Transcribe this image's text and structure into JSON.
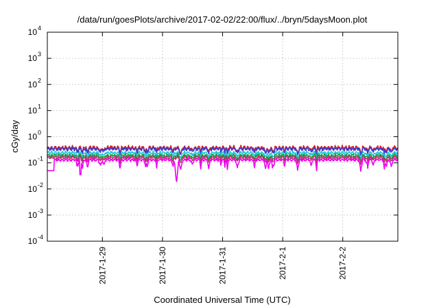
{
  "chart_data": {
    "type": "line",
    "title": "/data/run/goesPlots/archive/2017-02-02/22:00/flux/../bryn/5daysMoon.plot",
    "xlabel": "Coordinated Universal Time (UTC)",
    "ylabel": "cGy/day",
    "y_scale": "log",
    "ylim": [
      0.0001,
      10000
    ],
    "y_ticks": [
      {
        "base": "10",
        "exp": "4",
        "value": 10000
      },
      {
        "base": "10",
        "exp": "3",
        "value": 1000
      },
      {
        "base": "10",
        "exp": "2",
        "value": 100
      },
      {
        "base": "10",
        "exp": "1",
        "value": 10
      },
      {
        "base": "10",
        "exp": "0",
        "value": 1
      },
      {
        "base": "10",
        "exp": "-1",
        "value": 0.1
      },
      {
        "base": "10",
        "exp": "-2",
        "value": 0.01
      },
      {
        "base": "10",
        "exp": "-3",
        "value": 0.001
      },
      {
        "base": "10",
        "exp": "-4",
        "value": 0.0001
      }
    ],
    "xlim": [
      "2017-01-28 02:00",
      "2017-02-02 22:00"
    ],
    "x_ticks": [
      {
        "label": "2017-1-29",
        "days": 0.9167
      },
      {
        "label": "2017-1-30",
        "days": 1.9167
      },
      {
        "label": "2017-1-31",
        "days": 2.9167
      },
      {
        "label": "2017-2-1",
        "days": 3.9167
      },
      {
        "label": "2017-2-2",
        "days": 4.9167
      }
    ],
    "x_span_days": 5.8333,
    "grid": true,
    "legend": "none",
    "series": [
      {
        "color": "#d62020",
        "level": 0.38,
        "dip": 0.25,
        "noise": 0.09
      },
      {
        "color": "#3b3bd6",
        "level": 0.34,
        "dip": 0.25,
        "noise": 0.09
      },
      {
        "color": "#20c8d8",
        "level": 0.24,
        "dip": 0.25,
        "noise": 0.08
      },
      {
        "color": "#1a9a3a",
        "level": 0.19,
        "dip": 0.25,
        "noise": 0.08
      },
      {
        "color": "#c03070",
        "level": 0.16,
        "dip": 0.25,
        "noise": 0.08
      },
      {
        "color": "#f000f0",
        "level": 0.13,
        "dip": 0.45,
        "noise": 0.07
      }
    ],
    "notable_minimum": {
      "series": 5,
      "days": 2.15,
      "value": 0.016
    }
  }
}
